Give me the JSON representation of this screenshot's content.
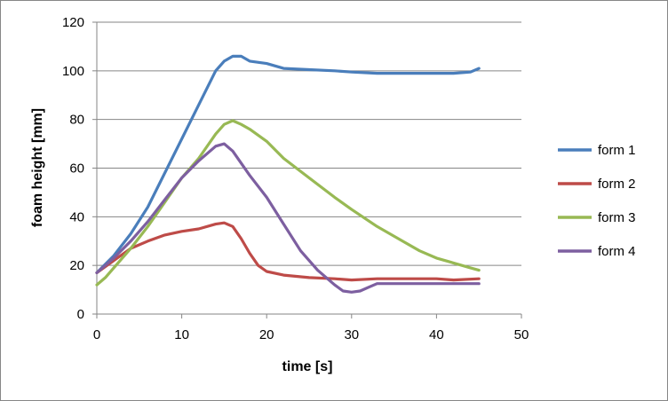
{
  "chart_data": {
    "type": "line",
    "xlabel": "time [s]",
    "ylabel": "foam height [mm]",
    "xlim": [
      0,
      50
    ],
    "ylim": [
      0,
      120
    ],
    "xticks": [
      0,
      10,
      20,
      30,
      40,
      50
    ],
    "yticks": [
      0,
      20,
      40,
      60,
      80,
      100,
      120
    ],
    "grid": "horizontal",
    "legend_position": "right",
    "series": [
      {
        "name": "form 1",
        "color": "#4a7ebb",
        "points": [
          [
            0,
            17
          ],
          [
            2,
            24
          ],
          [
            4,
            33
          ],
          [
            6,
            44
          ],
          [
            8,
            58
          ],
          [
            10,
            72
          ],
          [
            12,
            86
          ],
          [
            14,
            100
          ],
          [
            15,
            104
          ],
          [
            16,
            106
          ],
          [
            17,
            106
          ],
          [
            18,
            104
          ],
          [
            20,
            103
          ],
          [
            22,
            101
          ],
          [
            25,
            100.5
          ],
          [
            28,
            100
          ],
          [
            30,
            99.5
          ],
          [
            33,
            99
          ],
          [
            36,
            99
          ],
          [
            40,
            99
          ],
          [
            42,
            99
          ],
          [
            44,
            99.5
          ],
          [
            45,
            101
          ]
        ]
      },
      {
        "name": "form 2",
        "color": "#be4b48",
        "points": [
          [
            0,
            17
          ],
          [
            2,
            22
          ],
          [
            4,
            27
          ],
          [
            6,
            30
          ],
          [
            8,
            32.5
          ],
          [
            10,
            34
          ],
          [
            12,
            35
          ],
          [
            14,
            37
          ],
          [
            15,
            37.5
          ],
          [
            16,
            36
          ],
          [
            17,
            31
          ],
          [
            18,
            25
          ],
          [
            19,
            20
          ],
          [
            20,
            17.5
          ],
          [
            22,
            16
          ],
          [
            25,
            15
          ],
          [
            28,
            14.5
          ],
          [
            30,
            14
          ],
          [
            33,
            14.5
          ],
          [
            36,
            14.5
          ],
          [
            40,
            14.5
          ],
          [
            42,
            14
          ],
          [
            45,
            14.5
          ]
        ]
      },
      {
        "name": "form 3",
        "color": "#98b954",
        "points": [
          [
            0,
            12
          ],
          [
            1,
            15
          ],
          [
            2,
            19
          ],
          [
            4,
            27
          ],
          [
            6,
            36
          ],
          [
            8,
            46
          ],
          [
            10,
            56
          ],
          [
            12,
            64
          ],
          [
            14,
            74
          ],
          [
            15,
            78
          ],
          [
            16,
            79.5
          ],
          [
            17,
            78
          ],
          [
            18,
            76
          ],
          [
            20,
            71
          ],
          [
            22,
            64
          ],
          [
            25,
            56
          ],
          [
            28,
            48
          ],
          [
            30,
            43
          ],
          [
            33,
            36
          ],
          [
            36,
            30
          ],
          [
            38,
            26
          ],
          [
            40,
            23
          ],
          [
            42,
            21
          ],
          [
            44,
            19
          ],
          [
            45,
            18
          ]
        ]
      },
      {
        "name": "form 4",
        "color": "#7d5fa0",
        "points": [
          [
            0,
            17
          ],
          [
            2,
            23
          ],
          [
            4,
            30
          ],
          [
            6,
            38
          ],
          [
            8,
            47
          ],
          [
            10,
            56
          ],
          [
            12,
            63
          ],
          [
            14,
            69
          ],
          [
            15,
            70
          ],
          [
            16,
            67
          ],
          [
            18,
            57
          ],
          [
            20,
            48
          ],
          [
            22,
            37
          ],
          [
            24,
            26
          ],
          [
            26,
            18
          ],
          [
            28,
            12
          ],
          [
            29,
            9.5
          ],
          [
            30,
            9
          ],
          [
            31,
            9.5
          ],
          [
            32,
            11
          ],
          [
            33,
            12.5
          ],
          [
            36,
            12.5
          ],
          [
            40,
            12.5
          ],
          [
            45,
            12.5
          ]
        ]
      }
    ]
  }
}
